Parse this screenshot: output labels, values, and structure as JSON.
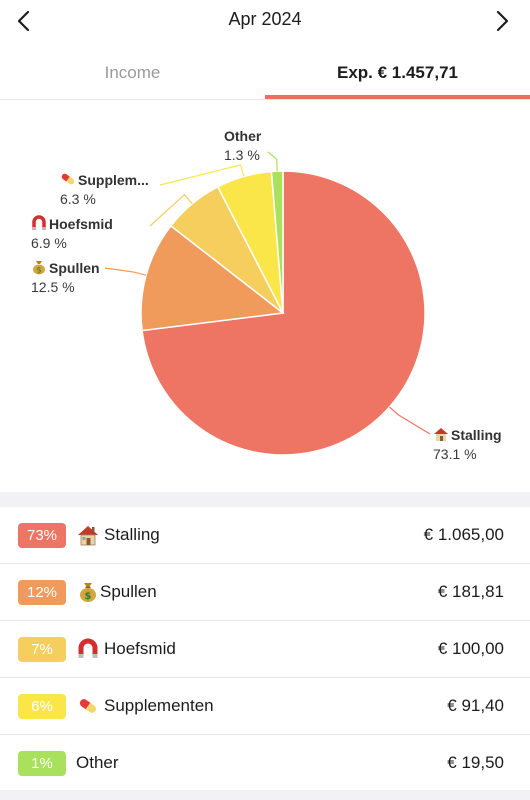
{
  "header": {
    "month": "Apr 2024"
  },
  "tabs": {
    "income_label": "Income",
    "expense_label": "Exp. € 1.457,71"
  },
  "colors": {
    "stalling": "#ee7464",
    "spullen": "#f09a5c",
    "hoefsmid": "#f6ce5e",
    "supplementen": "#fbe64a",
    "other": "#a9e05c",
    "accent": "#eb6e60"
  },
  "chart_data": {
    "type": "pie",
    "slices": [
      {
        "name": "Stalling",
        "value": 73.1,
        "label": "Stalling",
        "pct": "73.1 %",
        "color": "#ee7464",
        "icon": "house-icon"
      },
      {
        "name": "Spullen",
        "value": 12.5,
        "label": "Spullen",
        "pct": "12.5 %",
        "color": "#f09a5c",
        "icon": "money-bag-icon"
      },
      {
        "name": "Hoefsmid",
        "value": 6.9,
        "label": "Hoefsmid",
        "pct": "6.9 %",
        "color": "#f6ce5e",
        "icon": "horseshoe-magnet-icon"
      },
      {
        "name": "Supplementen",
        "value": 6.3,
        "label": "Supplem...",
        "pct": "6.3 %",
        "color": "#fbe64a",
        "icon": "pill-icon"
      },
      {
        "name": "Other",
        "value": 1.3,
        "label": "Other",
        "pct": "1.3 %",
        "color": "#a9e05c",
        "icon": ""
      }
    ]
  },
  "categories": [
    {
      "badge": "73%",
      "label": "Stalling",
      "amount": "€ 1.065,00",
      "icon": "house-icon",
      "color": "#ee7464"
    },
    {
      "badge": "12%",
      "label": "Spullen",
      "amount": "€ 181,81",
      "icon": "money-bag-icon",
      "color": "#f09a5c"
    },
    {
      "badge": "7%",
      "label": "Hoefsmid",
      "amount": "€ 100,00",
      "icon": "horseshoe-magnet-icon",
      "color": "#f6ce5e"
    },
    {
      "badge": "6%",
      "label": "Supplementen",
      "amount": "€ 91,40",
      "icon": "pill-icon",
      "color": "#fbe64a"
    },
    {
      "badge": "1%",
      "label": "Other",
      "amount": "€ 19,50",
      "icon": "",
      "color": "#a9e05c"
    }
  ]
}
